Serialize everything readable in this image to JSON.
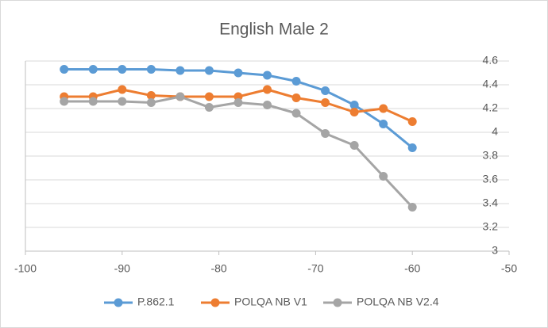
{
  "chart_data": {
    "type": "line",
    "title": "English Male 2",
    "x": [
      -96,
      -93,
      -90,
      -87,
      -84,
      -81,
      -78,
      -75,
      -72,
      -69,
      -66,
      -63,
      -60
    ],
    "series": [
      {
        "name": "P.862.1",
        "color": "#5b9bd5",
        "values": [
          4.53,
          4.53,
          4.53,
          4.53,
          4.52,
          4.52,
          4.5,
          4.48,
          4.43,
          4.35,
          4.23,
          4.07,
          3.87
        ]
      },
      {
        "name": "POLQA NB V1",
        "color": "#ed7d31",
        "values": [
          4.3,
          4.3,
          4.36,
          4.31,
          4.3,
          4.3,
          4.3,
          4.36,
          4.29,
          4.25,
          4.17,
          4.2,
          4.09
        ]
      },
      {
        "name": "POLQA NB V2.4",
        "color": "#a5a5a5",
        "values": [
          4.26,
          4.26,
          4.26,
          4.25,
          4.3,
          4.21,
          4.25,
          4.23,
          4.16,
          3.99,
          3.89,
          3.63,
          3.37
        ]
      }
    ],
    "xlim": [
      -100,
      -50
    ],
    "xticks": [
      -100,
      -90,
      -80,
      -70,
      -60,
      -50
    ],
    "ylim": [
      3,
      4.6
    ],
    "yticks": [
      3,
      3.2,
      3.4,
      3.6,
      3.8,
      4,
      4.2,
      4.4,
      4.6
    ],
    "grid": true,
    "legend": "bottom"
  }
}
